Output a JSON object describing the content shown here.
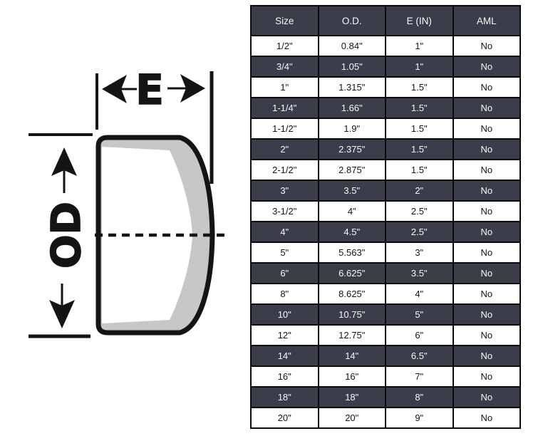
{
  "diagram": {
    "e_label": "E",
    "od_label": "OD"
  },
  "table": {
    "columns": [
      {
        "key": "size",
        "label": "Size"
      },
      {
        "key": "od",
        "label": "O.D."
      },
      {
        "key": "e-in",
        "label": "E (IN)"
      },
      {
        "key": "aml",
        "label": "AML"
      }
    ],
    "rows": [
      [
        "1/2\"",
        "0.84\"",
        "1\"",
        "No"
      ],
      [
        "3/4\"",
        "1.05\"",
        "1\"",
        "No"
      ],
      [
        "1\"",
        "1.315\"",
        "1.5\"",
        "No"
      ],
      [
        "1-1/4\"",
        "1.66\"",
        "1.5\"",
        "No"
      ],
      [
        "1-1/2\"",
        "1.9\"",
        "1.5\"",
        "No"
      ],
      [
        "2\"",
        "2.375\"",
        "1.5\"",
        "No"
      ],
      [
        "2-1/2\"",
        "2.875\"",
        "1.5\"",
        "No"
      ],
      [
        "3\"",
        "3.5\"",
        "2\"",
        "No"
      ],
      [
        "3-1/2\"",
        "4\"",
        "2.5\"",
        "No"
      ],
      [
        "4\"",
        "4.5\"",
        "2.5\"",
        "No"
      ],
      [
        "5\"",
        "5.563\"",
        "3\"",
        "No"
      ],
      [
        "6\"",
        "6.625\"",
        "3.5\"",
        "No"
      ],
      [
        "8\"",
        "8.625\"",
        "4\"",
        "No"
      ],
      [
        "10\"",
        "10.75\"",
        "5\"",
        "No"
      ],
      [
        "12\"",
        "12.75\"",
        "6\"",
        "No"
      ],
      [
        "14\"",
        "14\"",
        "6.5\"",
        "No"
      ],
      [
        "16\"",
        "16\"",
        "7\"",
        "No"
      ],
      [
        "18\"",
        "18\"",
        "8\"",
        "No"
      ],
      [
        "20\"",
        "20\"",
        "9\"",
        "No"
      ]
    ]
  },
  "colors": {
    "header-bg": "#3b3e4a",
    "row-dark-bg": "#3b3e4a",
    "row-light-bg": "#ffffff",
    "grid-border": "#0b0b0b",
    "ink": "#141414",
    "cap-wall": "#c7c7c7",
    "text-light": "#f8f8f8",
    "text-dark": "#151515"
  }
}
